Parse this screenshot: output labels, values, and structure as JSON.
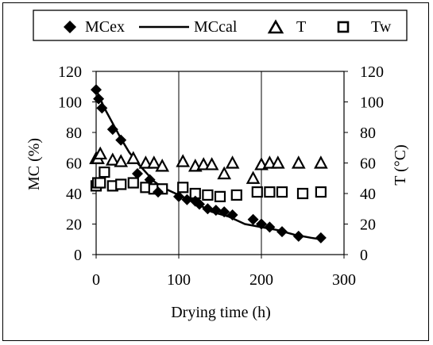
{
  "chart_data": {
    "type": "scatter",
    "xlabel": "Drying time (h)",
    "ylabel_left": "MC (%)",
    "ylabel_right": "T (°C)",
    "xlim": [
      0,
      300
    ],
    "ylim_left": [
      0,
      120
    ],
    "ylim_right": [
      0,
      120
    ],
    "x_ticks": [
      0,
      100,
      200,
      300
    ],
    "y_ticks": [
      0,
      20,
      40,
      60,
      80,
      100,
      120
    ],
    "grid": "vertical",
    "legend": "top",
    "series": [
      {
        "name": "MCex",
        "kind": "markers",
        "marker": "diamond",
        "axis": "left",
        "x": [
          0,
          3,
          7,
          20,
          30,
          50,
          65,
          75,
          100,
          110,
          120,
          125,
          135,
          145,
          155,
          165,
          190,
          200,
          210,
          225,
          245,
          272
        ],
        "y": [
          108,
          102,
          96,
          82,
          75,
          53,
          49,
          41,
          38,
          36,
          35,
          33,
          30,
          29,
          28,
          26,
          23,
          20,
          18,
          15,
          12,
          11
        ]
      },
      {
        "name": "MCcal",
        "kind": "line",
        "axis": "left",
        "x": [
          0,
          10,
          20,
          30,
          40,
          50,
          60,
          70,
          80,
          100,
          120,
          140,
          160,
          180,
          200,
          220,
          240,
          260,
          272
        ],
        "y": [
          108,
          96,
          86,
          76,
          67,
          60,
          54,
          48,
          44,
          39,
          34,
          28,
          25,
          20,
          18,
          16,
          13,
          11,
          10
        ]
      },
      {
        "name": "T",
        "kind": "markers",
        "marker": "triangle",
        "axis": "right",
        "x": [
          0,
          2,
          5,
          20,
          30,
          45,
          60,
          70,
          80,
          105,
          120,
          130,
          140,
          155,
          165,
          190,
          200,
          210,
          220,
          245,
          272
        ],
        "y": [
          63,
          63,
          66,
          62,
          61,
          63,
          60,
          60,
          58,
          61,
          58,
          59,
          59,
          53,
          60,
          50,
          59,
          60,
          60,
          60,
          60
        ]
      },
      {
        "name": "Tw",
        "kind": "markers",
        "marker": "square",
        "axis": "right",
        "x": [
          0,
          2,
          5,
          10,
          20,
          30,
          45,
          60,
          70,
          80,
          105,
          120,
          135,
          150,
          170,
          195,
          210,
          225,
          250,
          272
        ],
        "y": [
          45,
          47,
          47,
          54,
          45,
          46,
          47,
          44,
          43,
          43,
          44,
          40,
          39,
          38,
          39,
          41,
          41,
          41,
          40,
          41
        ]
      }
    ]
  }
}
